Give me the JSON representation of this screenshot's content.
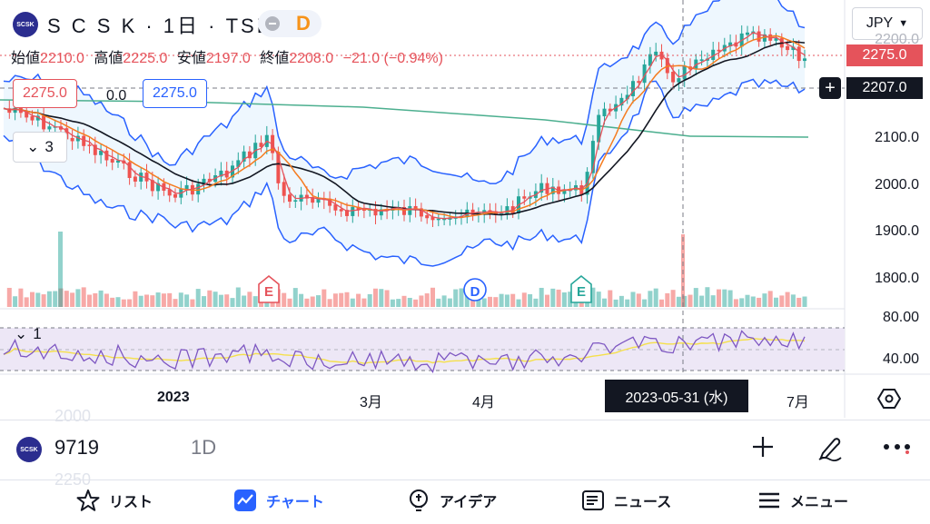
{
  "header": {
    "logo_text": "SCSK",
    "title": "S C S K · 1日 · TSE",
    "toggle_label": "D",
    "currency": "JPY"
  },
  "ohlc": {
    "open_label": "始値",
    "open": "2210.0",
    "high_label": "高値",
    "high": "2225.0",
    "low_label": "安値",
    "low": "2197.0",
    "close_label": "終値",
    "close": "2208.0",
    "change": "−21.0 (−0.94%)"
  },
  "indicator_boxes": {
    "left_value": "2275.0",
    "middle_value": "0.0",
    "right_value": "2275.0"
  },
  "collapse": {
    "main_count": "3",
    "rsi_count": "1"
  },
  "price_axis": {
    "ticks": [
      "2100.0",
      "2000.0",
      "1900.0",
      "1800.0"
    ],
    "top_partial": "2200.0",
    "last_price": "2275.0",
    "crosshair_price": "2207.0",
    "last_price_color": "#e5535b"
  },
  "rsi_axis": {
    "ticks": [
      "80.00",
      "40.00"
    ]
  },
  "time_axis": {
    "labels": [
      "2023",
      "3月",
      "4月",
      "7月"
    ],
    "crosshair_date": "2023-05-31 (水)"
  },
  "markers": {
    "earnings": "E",
    "dividend": "D"
  },
  "symbol_bar": {
    "logo_text": "SCSK",
    "code": "9719",
    "interval": "1D",
    "ghost_top": "2000",
    "ghost_bottom": "2250"
  },
  "bottom_nav": [
    {
      "label": "リスト",
      "icon": "star-icon"
    },
    {
      "label": "チャート",
      "icon": "chart-icon"
    },
    {
      "label": "アイデア",
      "icon": "lightbulb-icon"
    },
    {
      "label": "ニュース",
      "icon": "news-icon"
    },
    {
      "label": "メニュー",
      "icon": "menu-icon"
    }
  ],
  "colors": {
    "up": "#26a69a",
    "down": "#ef5350",
    "accent": "#2962ff",
    "bollinger": "#2962ff",
    "ma_short": "#e5535b",
    "ma_mid": "#f57c20",
    "ma_long": "#131722",
    "ma_200": "#4caf8f",
    "rsi": "#7e57c2",
    "rsi_ma": "#f5e04a"
  }
}
